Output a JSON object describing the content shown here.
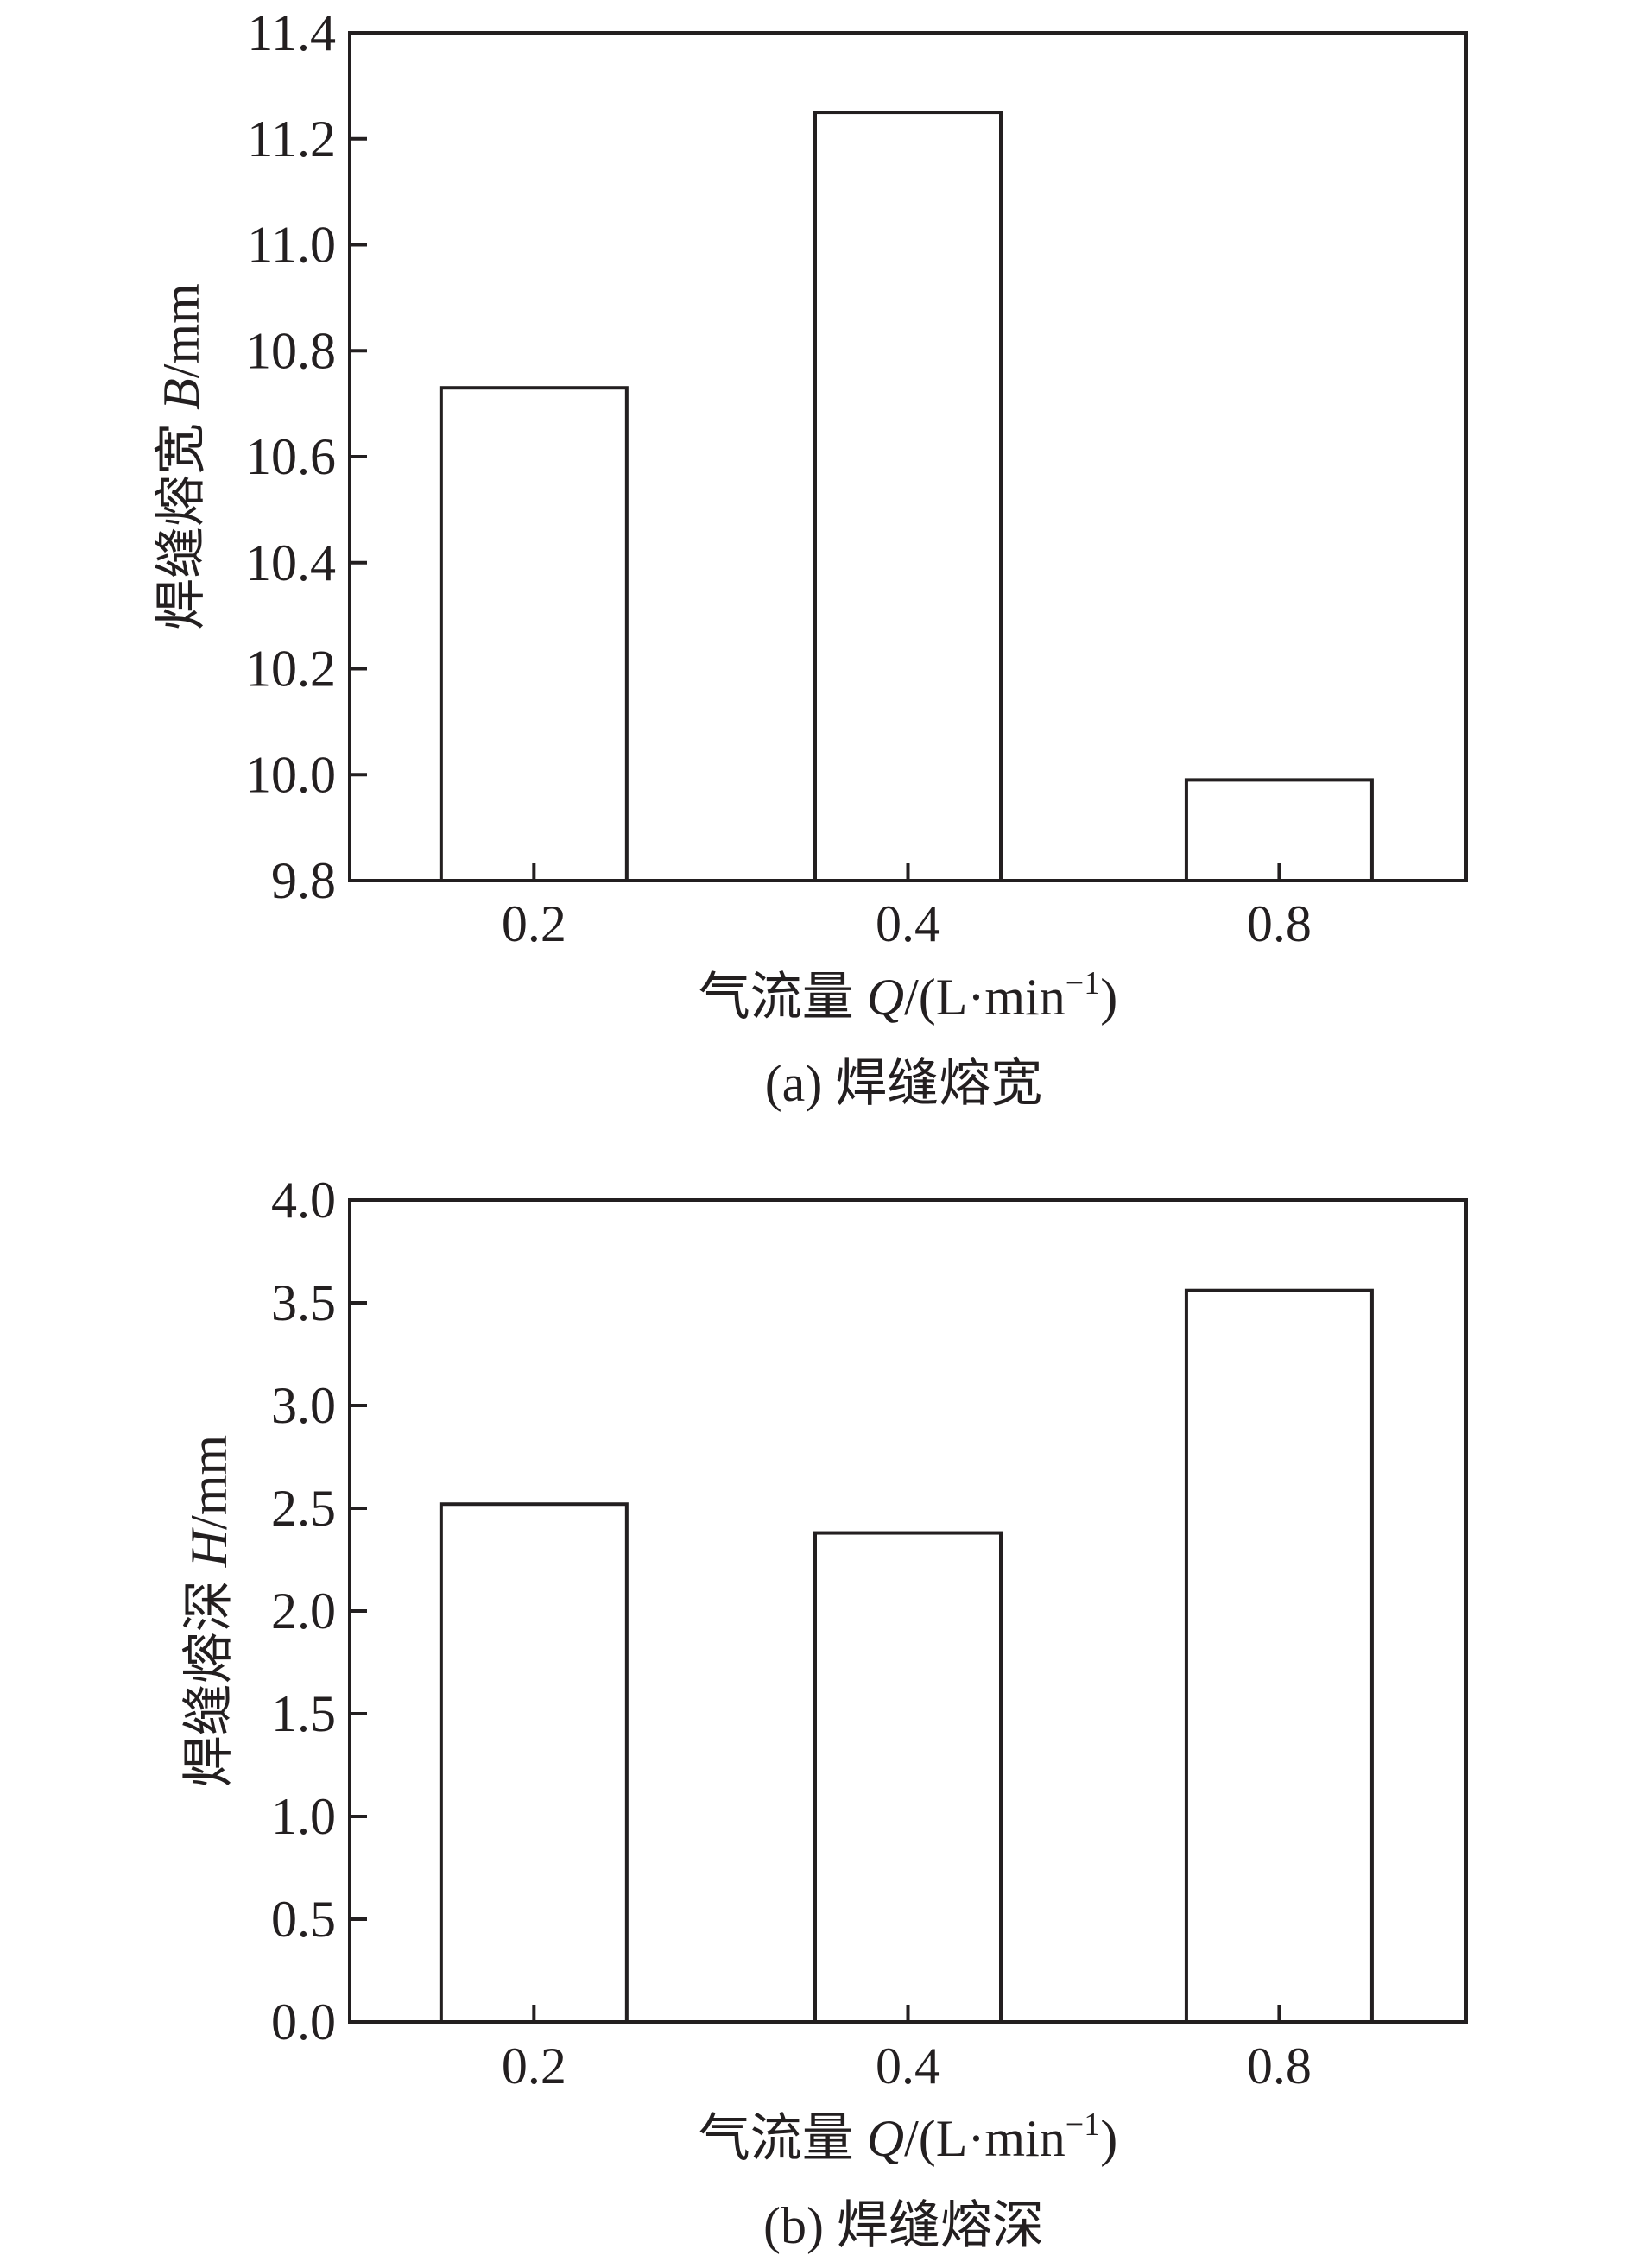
{
  "chart_data": [
    {
      "type": "bar",
      "categories": [
        "0.2",
        "0.4",
        "0.8"
      ],
      "values": [
        10.73,
        11.25,
        9.99
      ],
      "ylim": [
        9.8,
        11.4
      ],
      "yticks": [
        "9.8",
        "10.0",
        "10.2",
        "10.4",
        "10.6",
        "10.8",
        "11.0",
        "11.2",
        "11.4"
      ],
      "ylabel": {
        "prefix": "焊缝熔宽 ",
        "symbol": "B",
        "unit": "/mm"
      },
      "xlabel": {
        "prefix": "气流量 ",
        "symbol": "Q",
        "unit": "/(L·min",
        "sup": "−1",
        "close": ")"
      },
      "caption": "(a) 焊缝熔宽",
      "grid": false,
      "legend": "none"
    },
    {
      "type": "bar",
      "categories": [
        "0.2",
        "0.4",
        "0.8"
      ],
      "values": [
        2.52,
        2.38,
        3.56
      ],
      "ylim": [
        0.0,
        4.0
      ],
      "yticks": [
        "0.0",
        "0.5",
        "1.0",
        "1.5",
        "2.0",
        "2.5",
        "3.0",
        "3.5",
        "4.0"
      ],
      "ylabel": {
        "prefix": "焊缝熔深 ",
        "symbol": "H",
        "unit": "/mm"
      },
      "xlabel": {
        "prefix": "气流量 ",
        "symbol": "Q",
        "unit": "/(L·min",
        "sup": "−1",
        "close": ")"
      },
      "caption": "(b) 焊缝熔深",
      "grid": false,
      "legend": "none"
    }
  ],
  "colors": {
    "stroke": "#231f20",
    "bar_fill": "#ffffff",
    "background": "#ffffff"
  }
}
